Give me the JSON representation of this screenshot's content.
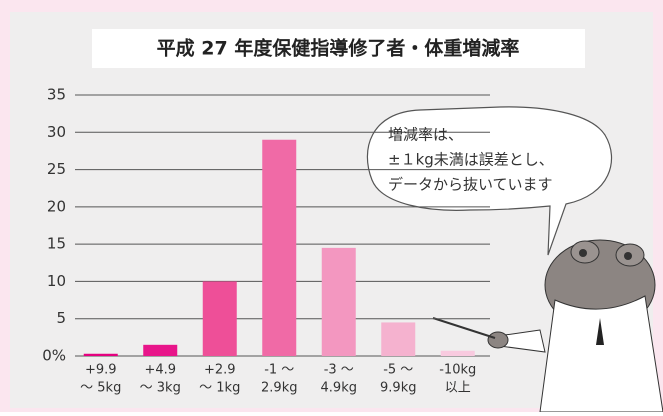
{
  "chart_data": {
    "type": "bar",
    "title": "平成 27 年度保健指導修了者・体重増減率",
    "categories": [
      [
        "+9.9",
        "～ 5kg"
      ],
      [
        "+4.9",
        "～ 3kg"
      ],
      [
        "+2.9",
        "～ 1kg"
      ],
      [
        "-1 ～",
        "2.9kg"
      ],
      [
        "-3 ～",
        "4.9kg"
      ],
      [
        "-5 ～",
        "9.9kg"
      ],
      [
        "-10kg",
        "以上"
      ]
    ],
    "values": [
      0.3,
      1.5,
      10,
      29,
      14.5,
      4.5,
      0.7
    ],
    "colors": [
      "#e4007f",
      "#e8158a",
      "#ee4f98",
      "#f06aa6",
      "#f397c0",
      "#f5b2cf",
      "#f8cadf"
    ],
    "ylim": [
      0,
      35
    ],
    "yticks": [
      {
        "value": 0,
        "label": "0%"
      },
      5,
      10,
      15,
      20,
      25,
      30,
      35
    ],
    "grid": true,
    "annotation": [
      "増減率は、",
      "±１kg未満は誤差とし、",
      "データから抜いています"
    ]
  }
}
